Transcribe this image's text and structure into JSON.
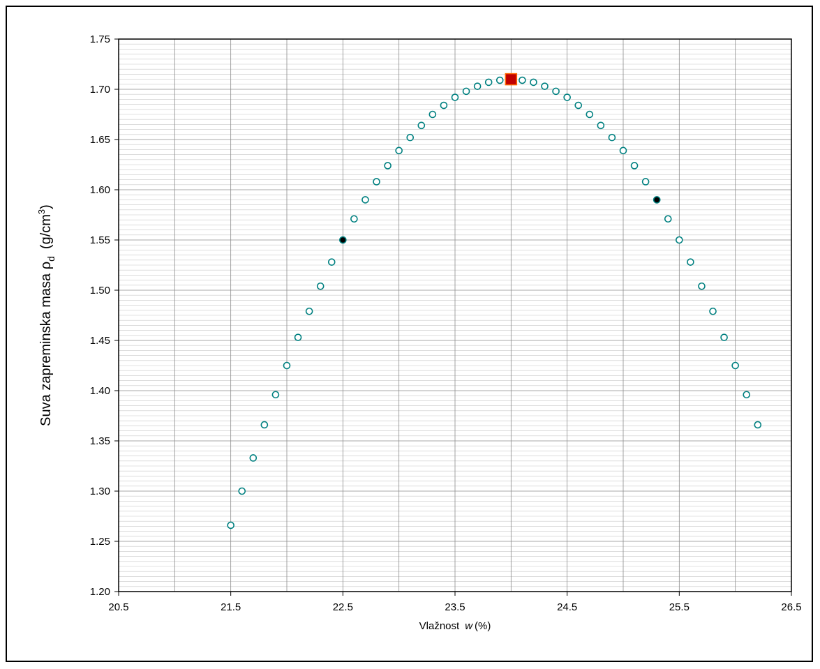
{
  "chart_data": {
    "type": "scatter",
    "title": "",
    "xlabel_prefix": "Vlažnost",
    "xlabel_var": "w",
    "xlabel_suffix": "(%)",
    "ylabel_main": "Suva zapreminska masa ρ",
    "ylabel_sub": "d",
    "ylabel_unit": "(g/cm",
    "ylabel_sup": "3",
    "ylabel_close": ")",
    "xlim": [
      20.5,
      26.5
    ],
    "ylim": [
      1.2,
      1.75
    ],
    "x_ticks": [
      "20.5",
      "21.5",
      "22.5",
      "23.5",
      "24.5",
      "25.5",
      "26.5"
    ],
    "y_ticks": [
      "1.20",
      "1.25",
      "1.30",
      "1.35",
      "1.40",
      "1.45",
      "1.50",
      "1.55",
      "1.60",
      "1.65",
      "1.70",
      "1.75"
    ],
    "x_major_step": 0.5,
    "y_minor_step": 0.005,
    "y_major_step": 0.05,
    "grid": true,
    "colors": {
      "curve_marker": "#008080",
      "measured_marker": "#000000",
      "optimum_fill": "#c00000",
      "optimum_edge": "#ff6600",
      "grid_major": "#8c8c8c",
      "grid_minor": "#c8c8c8"
    },
    "series": [
      {
        "role": "curve",
        "marker": "open-circle",
        "x": [
          21.5,
          21.6,
          21.7,
          21.8,
          21.9,
          22.0,
          22.1,
          22.2,
          22.3,
          22.4,
          22.5,
          22.6,
          22.7,
          22.8,
          22.9,
          23.0,
          23.1,
          23.2,
          23.3,
          23.4,
          23.5,
          23.6,
          23.7,
          23.8,
          23.9,
          24.1,
          24.2,
          24.3,
          24.4,
          24.5,
          24.6,
          24.7,
          24.8,
          24.9,
          25.0,
          25.1,
          25.2,
          25.3,
          25.4,
          25.5,
          25.6,
          25.7,
          25.8,
          25.9,
          26.0,
          26.1,
          26.2
        ],
        "y": [
          1.266,
          1.3,
          1.333,
          1.366,
          1.396,
          1.425,
          1.453,
          1.479,
          1.504,
          1.528,
          1.55,
          1.571,
          1.59,
          1.608,
          1.624,
          1.639,
          1.652,
          1.664,
          1.675,
          1.684,
          1.692,
          1.698,
          1.703,
          1.707,
          1.709,
          1.709,
          1.707,
          1.703,
          1.698,
          1.692,
          1.684,
          1.675,
          1.664,
          1.652,
          1.639,
          1.624,
          1.608,
          1.59,
          1.571,
          1.55,
          1.528,
          1.504,
          1.479,
          1.453,
          1.425,
          1.396,
          1.366
        ]
      },
      {
        "role": "measured",
        "marker": "filled-circle",
        "x": [
          22.5,
          25.3
        ],
        "y": [
          1.55,
          1.59
        ]
      },
      {
        "role": "optimum",
        "marker": "square",
        "x": [
          24.0
        ],
        "y": [
          1.71
        ]
      }
    ]
  }
}
